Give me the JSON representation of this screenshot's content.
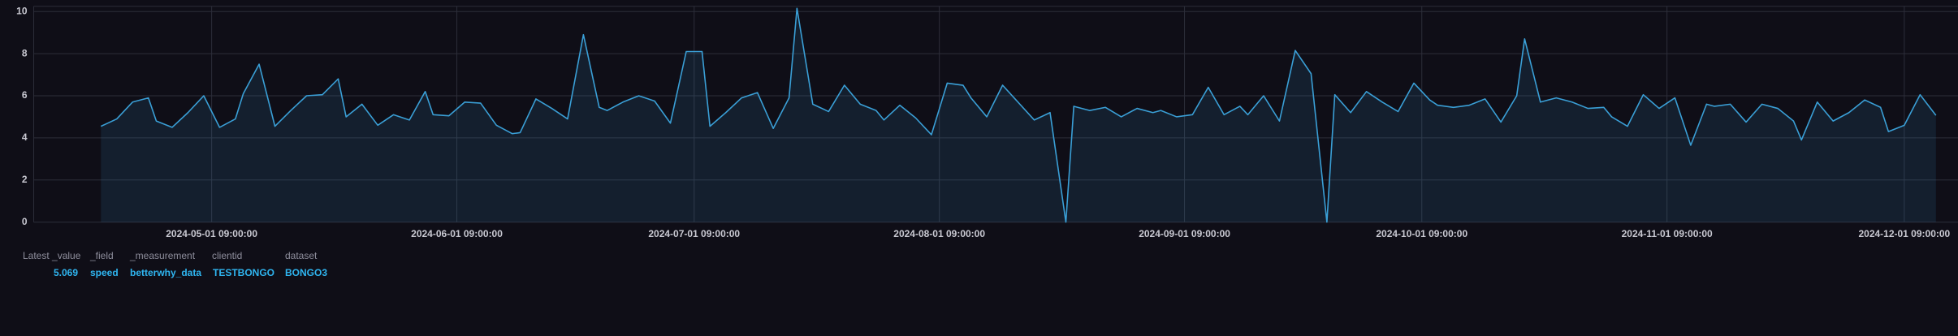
{
  "chart_data": {
    "type": "line",
    "x": [
      "2024-04-17 09:00:00",
      "2024-04-19 09:00:00",
      "2024-04-21 09:00:00",
      "2024-04-23 09:00:00",
      "2024-04-24 09:00:00",
      "2024-04-26 09:00:00",
      "2024-04-28 09:00:00",
      "2024-04-30 09:00:00",
      "2024-05-02 09:00:00",
      "2024-05-04 09:00:00",
      "2024-05-05 09:00:00",
      "2024-05-07 09:00:00",
      "2024-05-09 09:00:00",
      "2024-05-11 09:00:00",
      "2024-05-13 09:00:00",
      "2024-05-15 09:00:00",
      "2024-05-17 09:00:00",
      "2024-05-18 09:00:00",
      "2024-05-20 09:00:00",
      "2024-05-22 09:00:00",
      "2024-05-24 09:00:00",
      "2024-05-26 09:00:00",
      "2024-05-28 09:00:00",
      "2024-05-29 09:00:00",
      "2024-05-31 09:00:00",
      "2024-06-02 09:00:00",
      "2024-06-04 09:00:00",
      "2024-06-06 09:00:00",
      "2024-06-08 09:00:00",
      "2024-06-09 09:00:00",
      "2024-06-11 09:00:00",
      "2024-06-13 09:00:00",
      "2024-06-15 09:00:00",
      "2024-06-17 09:00:00",
      "2024-06-19 09:00:00",
      "2024-06-20 09:00:00",
      "2024-06-22 09:00:00",
      "2024-06-24 09:00:00",
      "2024-06-26 09:00:00",
      "2024-06-28 09:00:00",
      "2024-06-30 09:00:00",
      "2024-07-02 09:00:00",
      "2024-07-03 09:00:00",
      "2024-07-05 09:00:00",
      "2024-07-07 09:00:00",
      "2024-07-09 09:00:00",
      "2024-07-11 09:00:00",
      "2024-07-13 09:00:00",
      "2024-07-14 09:00:00",
      "2024-07-16 09:00:00",
      "2024-07-18 09:00:00",
      "2024-07-20 09:00:00",
      "2024-07-22 09:00:00",
      "2024-07-24 09:00:00",
      "2024-07-25 09:00:00",
      "2024-07-27 09:00:00",
      "2024-07-29 09:00:00",
      "2024-07-31 09:00:00",
      "2024-08-02 09:00:00",
      "2024-08-04 09:00:00",
      "2024-08-05 09:00:00",
      "2024-08-07 09:00:00",
      "2024-08-09 09:00:00",
      "2024-08-13 09:00:00",
      "2024-08-15 09:00:00",
      "2024-08-17 09:00:00",
      "2024-08-18 09:00:00",
      "2024-08-20 09:00:00",
      "2024-08-22 09:00:00",
      "2024-08-24 09:00:00",
      "2024-08-26 09:00:00",
      "2024-08-28 09:00:00",
      "2024-08-29 09:00:00",
      "2024-08-31 09:00:00",
      "2024-09-02 09:00:00",
      "2024-09-04 09:00:00",
      "2024-09-06 09:00:00",
      "2024-09-08 09:00:00",
      "2024-09-09 09:00:00",
      "2024-09-11 09:00:00",
      "2024-09-13 09:00:00",
      "2024-09-15 09:00:00",
      "2024-09-17 09:00:00",
      "2024-09-19 09:00:00",
      "2024-09-20 09:00:00",
      "2024-09-22 09:00:00",
      "2024-09-24 09:00:00",
      "2024-09-26 09:00:00",
      "2024-09-28 09:00:00",
      "2024-09-30 09:00:00",
      "2024-10-02 09:00:00",
      "2024-10-03 09:00:00",
      "2024-10-05 09:00:00",
      "2024-10-07 09:00:00",
      "2024-10-09 09:00:00",
      "2024-10-11 09:00:00",
      "2024-10-13 09:00:00",
      "2024-10-14 09:00:00",
      "2024-10-16 09:00:00",
      "2024-10-18 09:00:00",
      "2024-10-20 09:00:00",
      "2024-10-22 09:00:00",
      "2024-10-24 09:00:00",
      "2024-10-25 09:00:00",
      "2024-10-27 09:00:00",
      "2024-10-29 09:00:00",
      "2024-10-31 09:00:00",
      "2024-11-02 09:00:00",
      "2024-11-04 09:00:00",
      "2024-11-06 09:00:00",
      "2024-11-07 09:00:00",
      "2024-11-09 09:00:00",
      "2024-11-11 09:00:00",
      "2024-11-13 09:00:00",
      "2024-11-15 09:00:00",
      "2024-11-17 09:00:00",
      "2024-11-18 09:00:00",
      "2024-11-20 09:00:00",
      "2024-11-22 09:00:00",
      "2024-11-24 09:00:00",
      "2024-11-26 09:00:00",
      "2024-11-28 09:00:00",
      "2024-11-29 09:00:00",
      "2024-12-01 09:00:00",
      "2024-12-03 09:00:00",
      "2024-12-05 09:00:00"
    ],
    "series": [
      {
        "color": "#3a9fd6",
        "values": [
          4.55,
          4.9,
          5.7,
          5.9,
          4.8,
          4.5,
          5.2,
          6.0,
          4.5,
          4.9,
          6.1,
          7.5,
          4.55,
          5.3,
          6.0,
          6.05,
          6.8,
          5.0,
          5.6,
          4.6,
          5.1,
          4.85,
          6.2,
          5.1,
          5.05,
          5.7,
          5.65,
          4.6,
          4.2,
          4.25,
          5.85,
          5.4,
          4.9,
          8.9,
          5.45,
          5.3,
          5.7,
          6.0,
          5.75,
          4.7,
          8.1,
          8.1,
          4.55,
          5.2,
          5.9,
          6.15,
          4.45,
          5.9,
          10.15,
          5.6,
          5.25,
          6.5,
          5.6,
          5.3,
          4.85,
          5.55,
          4.95,
          4.15,
          6.6,
          6.5,
          5.9,
          5.0,
          6.5,
          4.85,
          5.2,
          0,
          5.5,
          5.3,
          5.45,
          5.0,
          5.4,
          5.2,
          5.3,
          5.0,
          5.1,
          6.4,
          5.1,
          5.5,
          5.1,
          6.0,
          4.8,
          8.15,
          7.05,
          0,
          6.05,
          5.2,
          6.2,
          5.7,
          5.25,
          6.6,
          5.8,
          5.55,
          5.45,
          5.55,
          5.85,
          4.75,
          6.0,
          8.7,
          5.7,
          5.9,
          5.7,
          5.4,
          5.45,
          5.0,
          4.55,
          6.05,
          5.4,
          5.9,
          3.65,
          5.6,
          5.5,
          5.6,
          4.75,
          5.6,
          5.4,
          4.8,
          3.9,
          5.7,
          4.8,
          5.2,
          5.8,
          5.45,
          4.3,
          4.6,
          6.05,
          5.069
        ]
      }
    ],
    "xlim": [
      "2024-04-08 21:00:00",
      "2024-12-08 04:00:00"
    ],
    "xticks": [
      "2024-05-01 09:00:00",
      "2024-06-01 09:00:00",
      "2024-07-01 09:00:00",
      "2024-08-01 09:00:00",
      "2024-09-01 09:00:00",
      "2024-10-01 09:00:00",
      "2024-11-01 09:00:00",
      "2024-12-01 09:00:00"
    ],
    "ylim": [
      0,
      10.25
    ],
    "yticks": [
      0,
      2,
      4,
      6,
      8,
      10
    ],
    "grid": true
  },
  "legend": {
    "headers": [
      "Latest _value",
      "_field",
      "_measurement",
      "clientid",
      "dataset"
    ],
    "values": [
      "speed",
      "betterwhy_data",
      "TESTBONGO",
      "BONGO3"
    ]
  }
}
